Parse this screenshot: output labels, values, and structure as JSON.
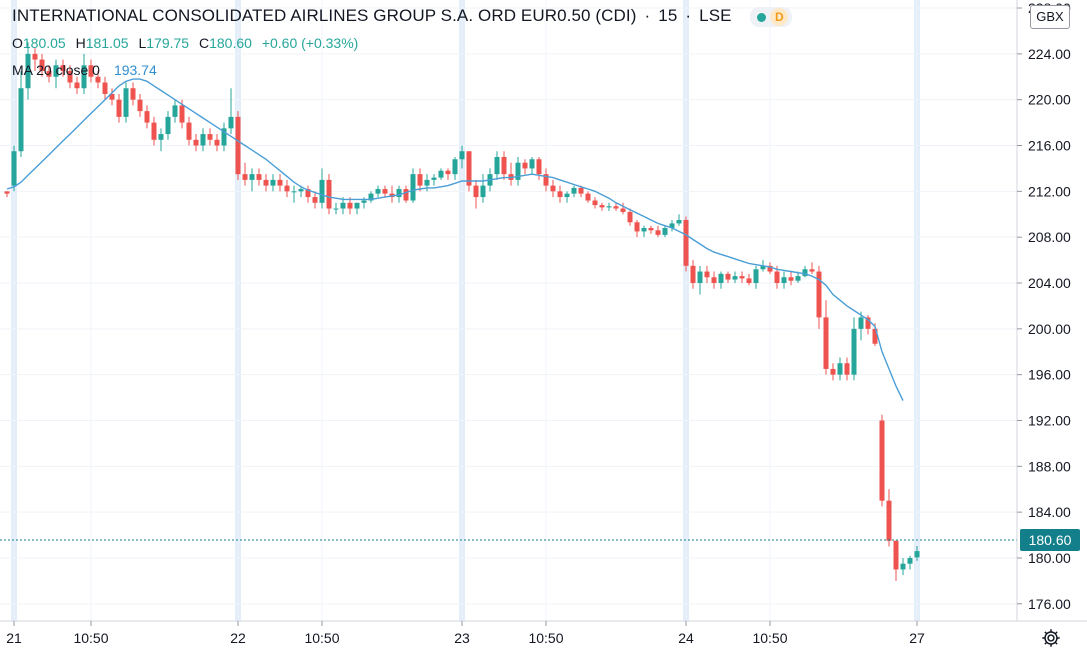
{
  "header": {
    "title": "INTERNATIONAL CONSOLIDATED AIRLINES GROUP S.A. ORD EUR0.50 (CDI)",
    "interval": "15",
    "exchange": "LSE",
    "status_letter": "D",
    "separator": "·"
  },
  "ohlc": {
    "open_label": "O",
    "open": "180.05",
    "high_label": "H",
    "high": "181.05",
    "low_label": "L",
    "low": "179.75",
    "close_label": "C",
    "close": "180.60",
    "change": "+0.60 (+0.33%)"
  },
  "indicator": {
    "label": "MA 20 close 0",
    "value": "193.74"
  },
  "currency_button": "GBX",
  "last_price": "180.60",
  "colors": {
    "up": "#26a69a",
    "down": "#ef5350",
    "ma_line": "#4a9ed6",
    "price_line": "#127f8a",
    "session_band": "#e3eefb"
  },
  "chart_data": {
    "type": "candlestick",
    "y_ticks": [
      "176.00",
      "180.00",
      "184.00",
      "188.00",
      "192.00",
      "196.00",
      "200.00",
      "204.00",
      "208.00",
      "212.00",
      "216.00",
      "220.00",
      "224.00",
      "228.00"
    ],
    "ylim": [
      174.5,
      228.7
    ],
    "x_ticks": [
      {
        "label": "21",
        "index": 1
      },
      {
        "label": "10:50",
        "index": 12
      },
      {
        "label": "22",
        "index": 33
      },
      {
        "label": "10:50",
        "index": 45
      },
      {
        "label": "23",
        "index": 65
      },
      {
        "label": "10:50",
        "index": 77
      },
      {
        "label": "24",
        "index": 97
      },
      {
        "label": "10:50",
        "index": 109
      },
      {
        "label": "27",
        "index": 130
      }
    ],
    "session_starts": [
      1,
      33,
      65,
      97,
      130
    ],
    "candles": [
      [
        212.0,
        212.0,
        211.5,
        211.8
      ],
      [
        212.5,
        216.0,
        212.0,
        215.5
      ],
      [
        215.5,
        222.5,
        215.0,
        221.0
      ],
      [
        221.0,
        225.0,
        220.0,
        224.0
      ],
      [
        224.0,
        224.5,
        222.5,
        223.5
      ],
      [
        223.5,
        224.0,
        222.0,
        222.5
      ],
      [
        222.5,
        223.0,
        221.5,
        222.0
      ],
      [
        222.0,
        223.5,
        221.0,
        223.0
      ],
      [
        223.0,
        223.5,
        222.0,
        222.5
      ],
      [
        222.5,
        223.0,
        221.0,
        221.5
      ],
      [
        221.5,
        222.0,
        220.5,
        221.0
      ],
      [
        221.0,
        224.0,
        220.5,
        223.0
      ],
      [
        223.0,
        223.5,
        221.5,
        222.0
      ],
      [
        222.0,
        222.5,
        221.0,
        221.5
      ],
      [
        221.5,
        222.0,
        220.0,
        220.5
      ],
      [
        220.5,
        221.0,
        219.5,
        220.0
      ],
      [
        220.0,
        220.5,
        218.0,
        218.5
      ],
      [
        218.5,
        221.5,
        218.0,
        221.0
      ],
      [
        221.0,
        221.5,
        219.5,
        220.0
      ],
      [
        220.0,
        220.5,
        218.5,
        219.0
      ],
      [
        219.0,
        219.5,
        217.5,
        218.0
      ],
      [
        218.0,
        218.5,
        216.0,
        216.5
      ],
      [
        216.5,
        217.5,
        215.5,
        217.0
      ],
      [
        217.0,
        219.0,
        216.5,
        218.5
      ],
      [
        218.5,
        220.0,
        218.0,
        219.5
      ],
      [
        219.5,
        220.0,
        217.5,
        218.0
      ],
      [
        218.0,
        218.5,
        216.0,
        216.5
      ],
      [
        216.5,
        217.0,
        215.5,
        216.0
      ],
      [
        216.0,
        217.5,
        215.5,
        217.0
      ],
      [
        217.0,
        217.5,
        216.0,
        216.5
      ],
      [
        216.5,
        217.0,
        215.5,
        216.0
      ],
      [
        216.0,
        218.0,
        215.5,
        217.5
      ],
      [
        217.5,
        221.0,
        217.0,
        218.5
      ],
      [
        218.5,
        219.0,
        213.0,
        213.5
      ],
      [
        213.5,
        214.5,
        212.5,
        213.0
      ],
      [
        213.0,
        214.0,
        212.0,
        213.5
      ],
      [
        213.5,
        214.0,
        212.5,
        213.0
      ],
      [
        213.0,
        213.5,
        212.0,
        212.5
      ],
      [
        212.5,
        213.5,
        212.0,
        213.0
      ],
      [
        213.0,
        213.5,
        212.0,
        212.5
      ],
      [
        212.5,
        213.0,
        211.5,
        212.0
      ],
      [
        212.0,
        212.5,
        211.0,
        212.0
      ],
      [
        212.0,
        212.5,
        211.5,
        212.2
      ],
      [
        212.2,
        212.5,
        211.0,
        211.5
      ],
      [
        211.5,
        212.0,
        210.5,
        211.0
      ],
      [
        211.0,
        214.0,
        210.5,
        213.0
      ],
      [
        213.0,
        213.5,
        210.0,
        210.5
      ],
      [
        210.5,
        211.0,
        210.0,
        210.5
      ],
      [
        210.5,
        211.5,
        210.0,
        211.0
      ],
      [
        211.0,
        211.5,
        210.0,
        210.5
      ],
      [
        210.5,
        211.0,
        210.0,
        211.0
      ],
      [
        211.0,
        211.5,
        210.5,
        211.2
      ],
      [
        211.2,
        212.0,
        211.0,
        211.8
      ],
      [
        211.8,
        212.5,
        211.5,
        212.2
      ],
      [
        212.2,
        212.5,
        211.5,
        211.8
      ],
      [
        211.8,
        212.5,
        211.0,
        211.5
      ],
      [
        211.5,
        212.5,
        211.0,
        212.2
      ],
      [
        212.2,
        212.5,
        211.0,
        211.2
      ],
      [
        211.2,
        214.0,
        211.0,
        213.5
      ],
      [
        213.5,
        214.0,
        212.0,
        212.5
      ],
      [
        212.5,
        213.5,
        212.0,
        213.0
      ],
      [
        213.0,
        213.5,
        212.5,
        213.2
      ],
      [
        213.2,
        214.0,
        213.0,
        213.8
      ],
      [
        213.8,
        214.0,
        213.0,
        213.5
      ],
      [
        213.5,
        215.0,
        213.0,
        214.8
      ],
      [
        214.8,
        216.0,
        214.0,
        215.5
      ],
      [
        215.5,
        215.5,
        212.0,
        212.5
      ],
      [
        212.5,
        213.0,
        210.5,
        211.5
      ],
      [
        211.5,
        213.5,
        211.0,
        212.5
      ],
      [
        212.5,
        214.0,
        212.0,
        213.5
      ],
      [
        213.5,
        215.5,
        213.0,
        215.0
      ],
      [
        215.0,
        215.5,
        213.0,
        213.5
      ],
      [
        213.5,
        214.5,
        212.5,
        213.0
      ],
      [
        213.0,
        215.0,
        212.5,
        214.5
      ],
      [
        214.5,
        214.8,
        213.5,
        214.0
      ],
      [
        214.0,
        215.0,
        213.5,
        214.8
      ],
      [
        214.8,
        215.0,
        213.0,
        213.5
      ],
      [
        213.5,
        214.0,
        212.0,
        212.5
      ],
      [
        212.5,
        213.0,
        211.5,
        212.0
      ],
      [
        212.0,
        212.5,
        211.0,
        211.5
      ],
      [
        211.5,
        212.0,
        211.0,
        211.8
      ],
      [
        211.8,
        212.5,
        211.5,
        212.3
      ],
      [
        212.3,
        212.5,
        211.5,
        211.8
      ],
      [
        211.8,
        212.0,
        211.0,
        211.2
      ],
      [
        211.2,
        211.5,
        210.5,
        210.8
      ],
      [
        210.8,
        211.0,
        210.3,
        210.6
      ],
      [
        210.6,
        211.0,
        210.3,
        210.7
      ],
      [
        210.7,
        211.0,
        210.3,
        210.5
      ],
      [
        210.5,
        211.0,
        210.0,
        210.2
      ],
      [
        210.2,
        210.5,
        209.0,
        209.3
      ],
      [
        209.3,
        209.5,
        208.0,
        208.5
      ],
      [
        208.5,
        209.0,
        208.0,
        208.8
      ],
      [
        208.8,
        209.0,
        208.3,
        208.6
      ],
      [
        208.6,
        209.0,
        208.0,
        208.2
      ],
      [
        208.2,
        209.0,
        208.0,
        208.8
      ],
      [
        208.8,
        209.5,
        208.5,
        209.2
      ],
      [
        209.2,
        210.0,
        209.0,
        209.5
      ],
      [
        209.5,
        209.8,
        205.0,
        205.5
      ],
      [
        205.5,
        206.0,
        203.5,
        204.0
      ],
      [
        204.0,
        205.5,
        203.0,
        205.0
      ],
      [
        205.0,
        205.5,
        204.0,
        204.5
      ],
      [
        204.5,
        205.0,
        203.5,
        204.0
      ],
      [
        204.0,
        205.0,
        203.5,
        204.8
      ],
      [
        204.8,
        205.0,
        204.0,
        204.3
      ],
      [
        204.3,
        205.0,
        204.0,
        204.6
      ],
      [
        204.6,
        205.0,
        204.0,
        204.4
      ],
      [
        204.4,
        204.8,
        203.8,
        204.0
      ],
      [
        204.0,
        205.5,
        203.5,
        205.2
      ],
      [
        205.2,
        206.0,
        205.0,
        205.5
      ],
      [
        205.5,
        205.8,
        204.8,
        205.0
      ],
      [
        205.0,
        205.5,
        203.5,
        204.0
      ],
      [
        204.0,
        205.0,
        203.5,
        204.5
      ],
      [
        204.5,
        205.0,
        203.8,
        204.2
      ],
      [
        204.2,
        205.0,
        204.0,
        204.6
      ],
      [
        204.6,
        205.5,
        204.5,
        205.2
      ],
      [
        205.2,
        205.8,
        204.8,
        205.0
      ],
      [
        205.0,
        205.5,
        200.0,
        201.0
      ],
      [
        201.0,
        202.5,
        196.0,
        196.5
      ],
      [
        196.5,
        197.0,
        195.5,
        196.0
      ],
      [
        196.0,
        197.5,
        195.5,
        197.0
      ],
      [
        197.0,
        197.5,
        195.5,
        196.0
      ],
      [
        196.0,
        201.0,
        195.5,
        200.0
      ],
      [
        200.0,
        201.5,
        199.0,
        201.0
      ],
      [
        201.0,
        201.2,
        199.5,
        200.0
      ],
      [
        200.0,
        200.5,
        198.5,
        198.7
      ],
      [
        192.0,
        192.5,
        184.5,
        185.0
      ],
      [
        185.0,
        186.0,
        181.0,
        181.5
      ],
      [
        181.5,
        181.5,
        178.0,
        179.0
      ],
      [
        179.0,
        180.0,
        178.5,
        179.5
      ],
      [
        179.5,
        180.2,
        179.0,
        180.0
      ],
      [
        180.05,
        181.05,
        179.75,
        180.6
      ]
    ],
    "ma20": [
      212.2,
      212.4,
      212.8,
      213.4,
      214.0,
      214.6,
      215.2,
      215.8,
      216.4,
      217.0,
      217.6,
      218.2,
      218.8,
      219.4,
      220.0,
      220.6,
      221.2,
      221.6,
      221.8,
      221.8,
      221.6,
      221.2,
      220.8,
      220.4,
      220.0,
      219.6,
      219.2,
      218.8,
      218.4,
      218.0,
      217.6,
      217.2,
      216.8,
      216.4,
      216.0,
      215.6,
      215.2,
      214.8,
      214.3,
      213.8,
      213.3,
      212.8,
      212.4,
      212.1,
      211.9,
      211.7,
      211.5,
      211.4,
      211.3,
      211.3,
      211.3,
      211.3,
      211.3,
      211.4,
      211.5,
      211.6,
      211.7,
      211.9,
      212.1,
      212.2,
      212.3,
      212.3,
      212.4,
      212.5,
      212.7,
      212.9,
      212.9,
      212.9,
      212.9,
      213.0,
      213.1,
      213.2,
      213.2,
      213.3,
      213.4,
      213.5,
      213.4,
      213.3,
      213.2,
      213.0,
      212.8,
      212.6,
      212.4,
      212.2,
      212.0,
      211.7,
      211.4,
      211.0,
      210.7,
      210.4,
      210.1,
      209.8,
      209.5,
      209.2,
      209.0,
      208.8,
      208.5,
      208.2,
      207.8,
      207.4,
      207.0,
      206.7,
      206.5,
      206.3,
      206.1,
      205.9,
      205.7,
      205.6,
      205.5,
      205.4,
      205.2,
      205.1,
      205.0,
      204.9,
      204.8,
      204.6,
      204.3,
      203.8,
      203.0,
      202.5,
      202.0,
      201.6,
      201.2,
      200.8,
      200.2,
      198.0,
      196.5,
      195.0,
      193.74
    ]
  }
}
